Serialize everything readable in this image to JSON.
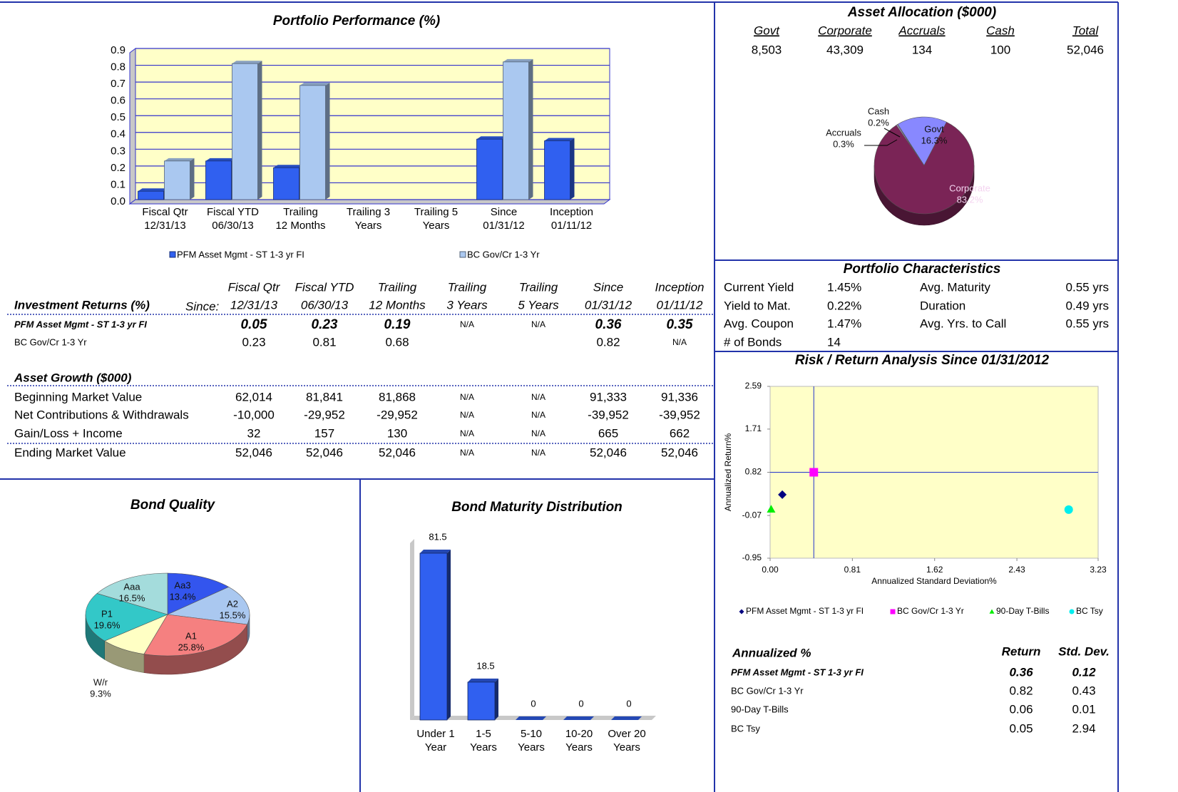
{
  "chart_data": [
    {
      "type": "bar",
      "title": "Portfolio Performance (%)",
      "categories": [
        [
          "Fiscal Qtr",
          "12/31/13"
        ],
        [
          "Fiscal YTD",
          "06/30/13"
        ],
        [
          "Trailing",
          "12 Months"
        ],
        [
          "Trailing 3",
          "Years"
        ],
        [
          "Trailing 5",
          "Years"
        ],
        [
          "Since",
          "01/31/12"
        ],
        [
          "Inception",
          "01/11/12"
        ]
      ],
      "series": [
        {
          "name": "PFM Asset Mgmt - ST 1-3 yr FI",
          "color": "#3060f0",
          "values": [
            0.05,
            0.23,
            0.19,
            null,
            null,
            0.36,
            0.35
          ]
        },
        {
          "name": "BC Gov/Cr 1-3 Yr",
          "color": "#aac8f0",
          "values": [
            0.23,
            0.81,
            0.68,
            null,
            null,
            0.82,
            null
          ]
        }
      ],
      "ylim": [
        0,
        0.9
      ],
      "yticks": [
        {
          "value": 0,
          "label": "0.0"
        },
        0.1,
        0.2,
        0.3,
        0.4,
        0.5,
        0.6,
        0.7,
        0.8,
        0.9
      ],
      "grid": true,
      "legend": "bottom"
    },
    {
      "type": "pie",
      "categories": [
        "Govt",
        "Corporate",
        "Accruals",
        "Cash"
      ],
      "values": [
        16.3,
        83.2,
        0.3,
        0.2
      ],
      "value_labels": [
        "16.3%",
        "83.2%",
        "0.3%",
        "0.2%"
      ],
      "colors": [
        "#8888ff",
        "#7a2456",
        "#c8c8ff",
        "#d8d8ff"
      ]
    },
    {
      "type": "pie",
      "title": "Bond Quality",
      "categories": [
        "Aa3",
        "A2",
        "A1",
        "W/r",
        "P1",
        "Aaa"
      ],
      "values": [
        13.4,
        15.5,
        25.8,
        9.3,
        19.6,
        16.5
      ],
      "value_labels": [
        "13.4%",
        "15.5%",
        "25.8%",
        "9.3%",
        "19.6%",
        "16.5%"
      ],
      "colors": [
        "#3355ee",
        "#aac8f0",
        "#f58080",
        "#ffffc4",
        "#33c8c8",
        "#a4dcdc"
      ]
    },
    {
      "type": "bar",
      "title": "Bond Maturity Distribution",
      "categories": [
        [
          "Under 1",
          "Year"
        ],
        [
          "1-5",
          "Years"
        ],
        [
          "5-10",
          "Years"
        ],
        [
          "10-20",
          "Years"
        ],
        [
          "Over 20",
          "Years"
        ]
      ],
      "values": [
        81.5,
        18.5,
        0,
        0,
        0
      ],
      "color": "#3060f0"
    },
    {
      "type": "scatter",
      "title": "Risk / Return Analysis Since 01/31/2012",
      "x_label": "Annualized Standard Deviation%",
      "y_label": "Annualized Return%",
      "xlim": [
        0,
        3.23
      ],
      "xticks": [
        {
          "value": 0,
          "label": "0.00"
        },
        0.81,
        1.62,
        2.43,
        3.23
      ],
      "ylim": [
        -0.95,
        2.59
      ],
      "yticks": [
        -0.95,
        -0.07,
        0.82,
        1.71,
        2.59
      ],
      "series": [
        {
          "name": "PFM Asset Mgmt - ST 1-3 yr FI",
          "color": "#000080",
          "marker": "diamond",
          "x": [
            0.12
          ],
          "values": [
            0.36
          ]
        },
        {
          "name": "BC Gov/Cr 1-3 Yr",
          "color": "#ff00ff",
          "marker": "square",
          "x": [
            0.43
          ],
          "values": [
            0.82
          ]
        },
        {
          "name": "90-Day T-Bills",
          "color": "#00ee00",
          "marker": "triangle",
          "x": [
            0.01
          ],
          "values": [
            0.06
          ]
        },
        {
          "name": "BC Tsy",
          "color": "#00eeee",
          "marker": "circle",
          "x": [
            2.94
          ],
          "values": [
            0.05
          ]
        }
      ]
    }
  ],
  "investment_returns": {
    "title": "Investment Returns (%)",
    "since_label": "Since:",
    "column_headers": [
      [
        "Fiscal Qtr",
        "12/31/13"
      ],
      [
        "Fiscal YTD",
        "06/30/13"
      ],
      [
        "Trailing",
        "12 Months"
      ],
      [
        "Trailing",
        "3 Years"
      ],
      [
        "Trailing",
        "5 Years"
      ],
      [
        "Since",
        "01/31/12"
      ],
      [
        "Inception",
        "01/11/12"
      ]
    ],
    "rows": [
      {
        "label": "PFM Asset Mgmt - ST 1-3 yr FI",
        "values": [
          "0.05",
          "0.23",
          "0.19",
          "N/A",
          "N/A",
          "0.36",
          "0.35"
        ]
      },
      {
        "label": "BC Gov/Cr 1-3 Yr",
        "values": [
          "0.23",
          "0.81",
          "0.68",
          null,
          null,
          "0.82",
          "N/A"
        ]
      }
    ]
  },
  "asset_growth": {
    "title": "Asset Growth ($000)",
    "rows": [
      {
        "label": "Beginning Market Value",
        "values": [
          "62,014",
          "81,841",
          "81,868",
          "N/A",
          "N/A",
          "91,333",
          "91,336"
        ]
      },
      {
        "label": "Net Contributions & Withdrawals",
        "values": [
          "-10,000",
          "-29,952",
          "-29,952",
          "N/A",
          "N/A",
          "-39,952",
          "-39,952"
        ]
      },
      {
        "label": "Gain/Loss + Income",
        "values": [
          "32",
          "157",
          "130",
          "N/A",
          "N/A",
          "665",
          "662"
        ]
      },
      {
        "label": "Ending Market Value",
        "values": [
          "52,046",
          "52,046",
          "52,046",
          "N/A",
          "N/A",
          "52,046",
          "52,046"
        ]
      }
    ]
  },
  "asset_allocation": {
    "title": "Asset Allocation ($000)",
    "headers": [
      "Govt",
      "Corporate",
      "Accruals",
      "Cash",
      "Total"
    ],
    "values": [
      "8,503",
      "43,309",
      "134",
      "100",
      "52,046"
    ]
  },
  "portfolio_characteristics": {
    "title": "Portfolio Characteristics",
    "rows": [
      [
        "Current Yield",
        "1.45%",
        "Avg. Maturity",
        "0.55 yrs"
      ],
      [
        "Yield to Mat.",
        "0.22%",
        "Duration",
        "0.49 yrs"
      ],
      [
        "Avg. Coupon",
        "1.47%",
        "Avg. Yrs. to Call",
        "0.55 yrs"
      ],
      [
        "# of Bonds",
        "14"
      ]
    ]
  },
  "annualized": {
    "title": "Annualized %",
    "headers": [
      "Return",
      "Std. Dev."
    ],
    "rows": [
      {
        "label": "PFM Asset Mgmt - ST 1-3 yr FI",
        "values": [
          "0.36",
          "0.12"
        ]
      },
      {
        "label": "BC Gov/Cr 1-3 Yr",
        "values": [
          "0.82",
          "0.43"
        ]
      },
      {
        "label": "90-Day T-Bills",
        "values": [
          "0.06",
          "0.01"
        ]
      },
      {
        "label": "BC Tsy",
        "values": [
          "0.05",
          "2.94"
        ]
      }
    ]
  }
}
